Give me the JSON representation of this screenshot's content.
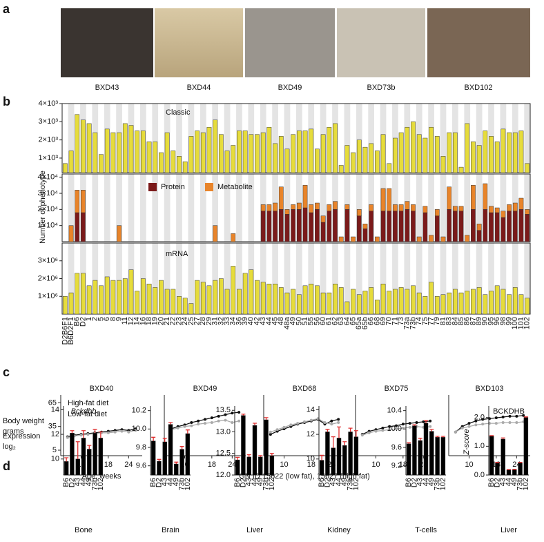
{
  "panel_labels": [
    "a",
    "b",
    "c",
    "d"
  ],
  "photos": [
    "BXD43",
    "BXD44",
    "BXD49",
    "BXD73b",
    "BXD102"
  ],
  "chart_data": [
    {
      "type": "bar",
      "title": "Classic",
      "color": "#e6dc3c",
      "values": [
        700,
        1400,
        3400,
        3100,
        2900,
        2400,
        1200,
        2600,
        2400,
        2400,
        2900,
        2800,
        2500,
        2500,
        1900,
        1900,
        1300,
        2400,
        1400,
        1100,
        800,
        2200,
        2500,
        2400,
        2700,
        3100,
        2300,
        1400,
        1700,
        2500,
        2500,
        2300,
        2300,
        2400,
        2700,
        1800,
        2200,
        1500,
        2300,
        2500,
        2500,
        2600,
        1500,
        2300,
        2700,
        2900,
        600,
        1700,
        1300,
        2000,
        1600,
        1800,
        1400,
        2300,
        700,
        2100,
        2400,
        2700,
        3000,
        2300,
        2100,
        2700,
        2200,
        1100,
        2400,
        2400,
        500,
        2900,
        1900,
        1700,
        2500,
        2200,
        1900,
        2600,
        2400,
        2400,
        2500,
        700
      ],
      "ylim": [
        200,
        4000
      ],
      "yticks": [
        {
          "value": 1000,
          "label": "1×10³"
        },
        {
          "value": 2000,
          "label": "2×10³"
        },
        {
          "value": 3000,
          "label": "3×10³"
        },
        {
          "value": 4000,
          "label": "4×10³"
        }
      ]
    },
    {
      "type": "stacked_bar",
      "ylabel": [
        "Number of phenotype"
      ],
      "series": [
        {
          "name": "Protein",
          "color": "#7b1a1a",
          "values": [
            0,
            0,
            18000,
            18000,
            0,
            0,
            0,
            0,
            0,
            0,
            0,
            0,
            0,
            0,
            0,
            0,
            0,
            0,
            0,
            0,
            0,
            0,
            0,
            0,
            0,
            0,
            0,
            0,
            0,
            0,
            0,
            0,
            0,
            19000,
            19000,
            19000,
            20000,
            17000,
            20000,
            20000,
            21000,
            18000,
            20000,
            12000,
            19000,
            20000,
            0,
            20000,
            0,
            16000,
            8000,
            19000,
            0,
            19000,
            19000,
            19000,
            19000,
            20000,
            19000,
            0,
            18000,
            0,
            16000,
            0,
            20000,
            19000,
            19000,
            0,
            20000,
            7000,
            20000,
            18000,
            18000,
            15000,
            19000,
            19000,
            20000,
            17000
          ]
        },
        {
          "name": "Metabolite",
          "color": "#e8842a",
          "values": [
            0,
            10000,
            14000,
            14000,
            0,
            0,
            0,
            0,
            0,
            10000,
            0,
            0,
            0,
            0,
            0,
            0,
            0,
            0,
            0,
            0,
            0,
            0,
            0,
            0,
            0,
            10000,
            0,
            0,
            5000,
            0,
            0,
            0,
            0,
            4000,
            4000,
            5000,
            14000,
            3000,
            3000,
            4000,
            14000,
            5000,
            4000,
            4000,
            4000,
            5000,
            3000,
            3000,
            3000,
            4000,
            3000,
            4000,
            3000,
            14000,
            14000,
            4000,
            4000,
            5000,
            4000,
            3000,
            4000,
            4000,
            4000,
            3000,
            14000,
            3000,
            3000,
            4000,
            15000,
            4000,
            16000,
            4000,
            3000,
            4000,
            4000,
            5000,
            7000,
            3000
          ]
        }
      ],
      "ylim": [
        0,
        42000
      ],
      "yticks": [
        {
          "value": 10000,
          "label": "1×10⁴"
        },
        {
          "value": 20000,
          "label": "2×10⁴"
        },
        {
          "value": 30000,
          "label": "3×10⁴"
        },
        {
          "value": 40000,
          "label": "4×10⁴"
        }
      ]
    },
    {
      "type": "bar",
      "title": "mRNA",
      "color": "#e6dc3c",
      "categories": [
        "D2B6F1",
        "B6D2F1",
        "B6",
        "D2",
        "1",
        "2",
        "5",
        "6",
        "8",
        "9",
        "11",
        "12",
        "14",
        "16",
        "18",
        "19",
        "20",
        "21",
        "22",
        "23",
        "24",
        "25",
        "27",
        "28",
        "29",
        "31",
        "32",
        "33",
        "34",
        "36",
        "39",
        "40",
        "42",
        "43",
        "44",
        "45",
        "48",
        "48a",
        "49",
        "50",
        "51",
        "55",
        "56",
        "60",
        "61",
        "62",
        "63",
        "64",
        "65",
        "65a",
        "65b",
        "66",
        "68",
        "69",
        "70",
        "71",
        "73",
        "73a",
        "73b",
        "74",
        "75",
        "77",
        "79",
        "81",
        "83",
        "84",
        "85",
        "86",
        "87",
        "89",
        "90",
        "95",
        "96",
        "98",
        "99",
        "100",
        "101",
        "102"
      ],
      "values": [
        1000000,
        1200000,
        2300000,
        2300000,
        1600000,
        1900000,
        1600000,
        2100000,
        1900000,
        1900000,
        2000000,
        2500000,
        1300000,
        2000000,
        1700000,
        1500000,
        1900000,
        1400000,
        1400000,
        1000000,
        900000,
        600000,
        1900000,
        1800000,
        1600000,
        1900000,
        2000000,
        1400000,
        2700000,
        1400000,
        2300000,
        2500000,
        1900000,
        1800000,
        1700000,
        1700000,
        1500000,
        1200000,
        1400000,
        1100000,
        1600000,
        1700000,
        1600000,
        1200000,
        1200000,
        1700000,
        1500000,
        700000,
        1400000,
        1100000,
        1300000,
        1500000,
        800000,
        1700000,
        1300000,
        1400000,
        1500000,
        1400000,
        1600000,
        1200000,
        1000000,
        1800000,
        1000000,
        1100000,
        1200000,
        1400000,
        1200000,
        1300000,
        1400000,
        1500000,
        1100000,
        1300000,
        1600000,
        1400000,
        1100000,
        1500000,
        1100000,
        900000
      ],
      "ylim": [
        0,
        4000000
      ],
      "yticks": [
        {
          "value": 1000000,
          "label": "1×10⁶"
        },
        {
          "value": 2000000,
          "label": "2×10⁶"
        },
        {
          "value": 3000000,
          "label": "3×10⁶"
        }
      ]
    },
    {
      "type": "line",
      "title": "BXD40",
      "xlabel": "Age, weeks",
      "ylabel": [
        "Body weight",
        "grams"
      ],
      "x": [
        6,
        8,
        10,
        12,
        14,
        16,
        18,
        20,
        22,
        24,
        26
      ],
      "xlim": [
        4,
        28
      ],
      "xticks": [
        10,
        18,
        24
      ],
      "ylim": [
        -2,
        75
      ],
      "yticks": [
        5,
        35,
        65
      ],
      "series": [
        {
          "name": "High-fat diet",
          "color": "#111111",
          "values": [
            22,
            24,
            25,
            26,
            27,
            28,
            29,
            30,
            31,
            30,
            32
          ]
        },
        {
          "name": "Low-fat diet",
          "color": "#aaaaaa",
          "values": [
            21,
            23,
            24,
            25,
            26,
            27,
            27,
            28,
            29,
            28,
            30
          ]
        }
      ]
    },
    {
      "type": "line",
      "title": "BXD49",
      "x": [
        6,
        8,
        10,
        12,
        14,
        16,
        18,
        20,
        22,
        24,
        26
      ],
      "xlim": [
        4,
        28
      ],
      "xticks": [
        10,
        18,
        24
      ],
      "ylim": [
        -2,
        75
      ],
      "series": [
        {
          "color": "#111111",
          "values": [
            32,
            35,
            37,
            40,
            42,
            44,
            46,
            48,
            50,
            52,
            53
          ]
        },
        {
          "color": "#aaaaaa",
          "values": [
            31,
            33,
            35,
            36,
            38,
            39,
            40,
            42,
            43,
            40,
            42
          ]
        }
      ]
    },
    {
      "type": "line",
      "title": "BXD68",
      "xlabel": "GN ID 15622 (low fat), 15627 (high fat)",
      "x": [
        6,
        8,
        10,
        12,
        14,
        16,
        18,
        20,
        22,
        24,
        26
      ],
      "xlim": [
        4,
        28
      ],
      "xticks": [
        10,
        18,
        24
      ],
      "ylim": [
        -2,
        75
      ],
      "series": [
        {
          "color": "#111111",
          "values": [
            25,
            29,
            32,
            35,
            38,
            40,
            42,
            44,
            38,
            42,
            44
          ]
        },
        {
          "color": "#aaaaaa",
          "values": [
            28,
            31,
            34,
            37,
            39,
            41,
            43,
            45,
            40,
            38,
            40
          ]
        }
      ]
    },
    {
      "type": "line",
      "title": "BXD75",
      "x": [
        6,
        8,
        10,
        12,
        14,
        16,
        18,
        20,
        22,
        24,
        26
      ],
      "xlim": [
        4,
        28
      ],
      "xticks": [
        10,
        18,
        24
      ],
      "ylim": [
        -2,
        75
      ],
      "series": [
        {
          "color": "#111111",
          "values": [
            25,
            29,
            31,
            33,
            35,
            36,
            38,
            39,
            40,
            41,
            42
          ]
        },
        {
          "color": "#aaaaaa",
          "values": [
            24,
            27,
            29,
            30,
            31,
            32,
            33,
            34,
            35,
            34,
            35
          ]
        }
      ]
    },
    {
      "type": "line",
      "title": "BXD103",
      "x": [
        6,
        8,
        10,
        12,
        14,
        16,
        18,
        20,
        22,
        24,
        26
      ],
      "xlim": [
        4,
        28
      ],
      "xticks": [
        10,
        18,
        24
      ],
      "ylim": [
        -2,
        75
      ],
      "series": [
        {
          "color": "#111111",
          "values": [
            28,
            35,
            39,
            42,
            44,
            45,
            46,
            47,
            48,
            48,
            49
          ]
        },
        {
          "color": "#aaaaaa",
          "values": [
            28,
            33,
            35,
            37,
            38,
            39,
            39,
            40,
            40,
            40,
            41
          ]
        }
      ]
    },
    {
      "type": "bar",
      "title": "Bckdhb",
      "xlabel": "Bone",
      "ylabel": [
        "Expression",
        "log₂"
      ],
      "color": "#000000",
      "error_color": "#e03030",
      "categories": [
        "B6",
        "D2",
        "43",
        "44",
        "49",
        "73b",
        "102"
      ],
      "values": [
        9.8,
        12.1,
        10.0,
        11.7,
        10.8,
        12.1,
        11.7
      ],
      "errors": [
        0.3,
        0.2,
        1.4,
        0.6,
        0.3,
        0.3,
        0.5
      ],
      "ylim": [
        8.7,
        14.3
      ],
      "yticks": [
        10,
        12,
        14
      ]
    },
    {
      "type": "bar",
      "xlabel": "Brain",
      "color": "#000000",
      "error_color": "#e03030",
      "categories": [
        "B6",
        "D2",
        "43",
        "44",
        "49",
        "73b",
        "102"
      ],
      "values": [
        9.87,
        9.65,
        9.86,
        10.05,
        9.62,
        9.78,
        9.95
      ],
      "errors": [
        0.04,
        0.02,
        0.04,
        0.02,
        0.02,
        0.03,
        0.04
      ],
      "ylim": [
        9.5,
        10.25
      ],
      "yticks": [
        9.6,
        9.8,
        {
          "value": 10,
          "label": "10.0"
        },
        10.2
      ]
    },
    {
      "type": "bar",
      "xlabel": "Liver",
      "color": "#000000",
      "error_color": "#e03030",
      "categories": [
        "B6",
        "D2",
        "43",
        "44",
        "49",
        "73b",
        "102"
      ],
      "values": [
        12.35,
        13.38,
        12.42,
        13.15,
        12.42,
        13.28,
        12.45
      ],
      "errors": [
        0.06,
        0.03,
        0.05,
        0.05,
        0.03,
        0.05,
        0.05
      ],
      "ylim": [
        12.0,
        13.6
      ],
      "yticks": [
        {
          "value": 12,
          "label": "12.0"
        },
        12.5,
        {
          "value": 13,
          "label": "13.0"
        },
        13.5
      ]
    },
    {
      "type": "bar",
      "xlabel": "Kidney",
      "color": "#000000",
      "error_color": "#e03030",
      "categories": [
        "B6",
        "D2",
        "43",
        "44",
        "49",
        "73b",
        "102"
      ],
      "values": [
        9.9,
        12.2,
        10.9,
        11.7,
        11.1,
        12.2,
        11.8
      ],
      "errors": [
        0.4,
        0.2,
        0.9,
        0.9,
        0.3,
        0.3,
        0.5
      ],
      "ylim": [
        8.7,
        14.3
      ],
      "yticks": [
        10,
        12,
        14
      ]
    },
    {
      "type": "bar",
      "xlabel": "T-cells",
      "color": "#000000",
      "error_color": "#e03030",
      "categories": [
        "B6",
        "D2",
        "43",
        "44",
        "49",
        "73b",
        "102"
      ],
      "values": [
        9.68,
        10.07,
        9.75,
        10.13,
        9.95,
        9.82,
        9.82
      ],
      "errors": [
        0.02,
        0.02,
        0.05,
        0.05,
        0.04,
        0.02,
        0.02
      ],
      "ylim": [
        9.0,
        10.5
      ],
      "yticks": [
        9.2,
        9.6,
        {
          "value": 10,
          "label": "10.0"
        },
        10.4
      ]
    },
    {
      "type": "bar",
      "title": "BCKDHB",
      "xlabel": "Liver",
      "ylabel": [
        "Z-score"
      ],
      "color": "#000000",
      "error_color": "#e03030",
      "categories": [
        "B6",
        "D2",
        "43",
        "44",
        "49",
        "73b",
        "102"
      ],
      "values": [
        1.35,
        0.42,
        1.25,
        0.18,
        0.18,
        0.42,
        2.0
      ],
      "errors": [
        0.02,
        0.02,
        0.04,
        0.01,
        0.02,
        0.02,
        0.02
      ],
      "ylim": [
        0,
        2.4
      ],
      "yticks": [
        {
          "value": 0,
          "label": "0.0"
        },
        {
          "value": 1,
          "label": "1.0"
        },
        {
          "value": 2,
          "label": "2.0"
        }
      ]
    }
  ]
}
